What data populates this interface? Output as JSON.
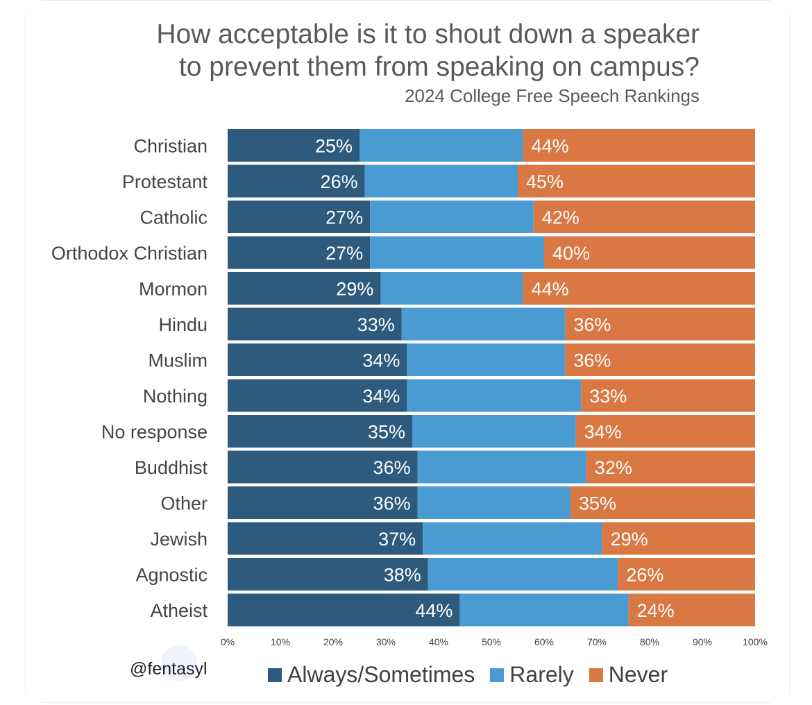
{
  "title_line1": "How acceptable is it to shout down a speaker",
  "title_line2": "to prevent them from speaking on campus?",
  "subtitle": "2024 College Free Speech Rankings",
  "handle": "@fentasyl",
  "colors": {
    "always": "#2d5a7d",
    "rarely": "#4a9bd1",
    "never": "#d97842",
    "label_text": "#444444",
    "tick_text": "#404040"
  },
  "chart_data": {
    "type": "bar",
    "orientation": "horizontal",
    "stacked": true,
    "percent_stacked": true,
    "categories": [
      "Christian",
      "Protestant",
      "Catholic",
      "Orthodox Christian",
      "Mormon",
      "Hindu",
      "Muslim",
      "Nothing",
      "No response",
      "Buddhist",
      "Other",
      "Jewish",
      "Agnostic",
      "Atheist"
    ],
    "series": [
      {
        "name": "Always/Sometimes",
        "values": [
          25,
          26,
          27,
          27,
          29,
          33,
          34,
          34,
          35,
          36,
          36,
          37,
          38,
          44
        ],
        "labels": [
          "25%",
          "26%",
          "27%",
          "27%",
          "29%",
          "33%",
          "34%",
          "34%",
          "35%",
          "36%",
          "36%",
          "37%",
          "38%",
          "44%"
        ]
      },
      {
        "name": "Rarely",
        "values": [
          31,
          29,
          31,
          33,
          27,
          31,
          30,
          33,
          31,
          32,
          29,
          34,
          36,
          32
        ]
      },
      {
        "name": "Never",
        "values": [
          44,
          45,
          42,
          40,
          44,
          36,
          36,
          33,
          34,
          32,
          35,
          29,
          26,
          24
        ],
        "labels": [
          "44%",
          "45%",
          "42%",
          "40%",
          "44%",
          "36%",
          "36%",
          "33%",
          "34%",
          "32%",
          "35%",
          "29%",
          "26%",
          "24%"
        ]
      }
    ],
    "xlim": [
      0,
      100
    ],
    "xticks": [
      "0%",
      "10%",
      "20%",
      "30%",
      "40%",
      "50%",
      "60%",
      "70%",
      "80%",
      "90%",
      "100%"
    ],
    "legend": "bottom"
  }
}
